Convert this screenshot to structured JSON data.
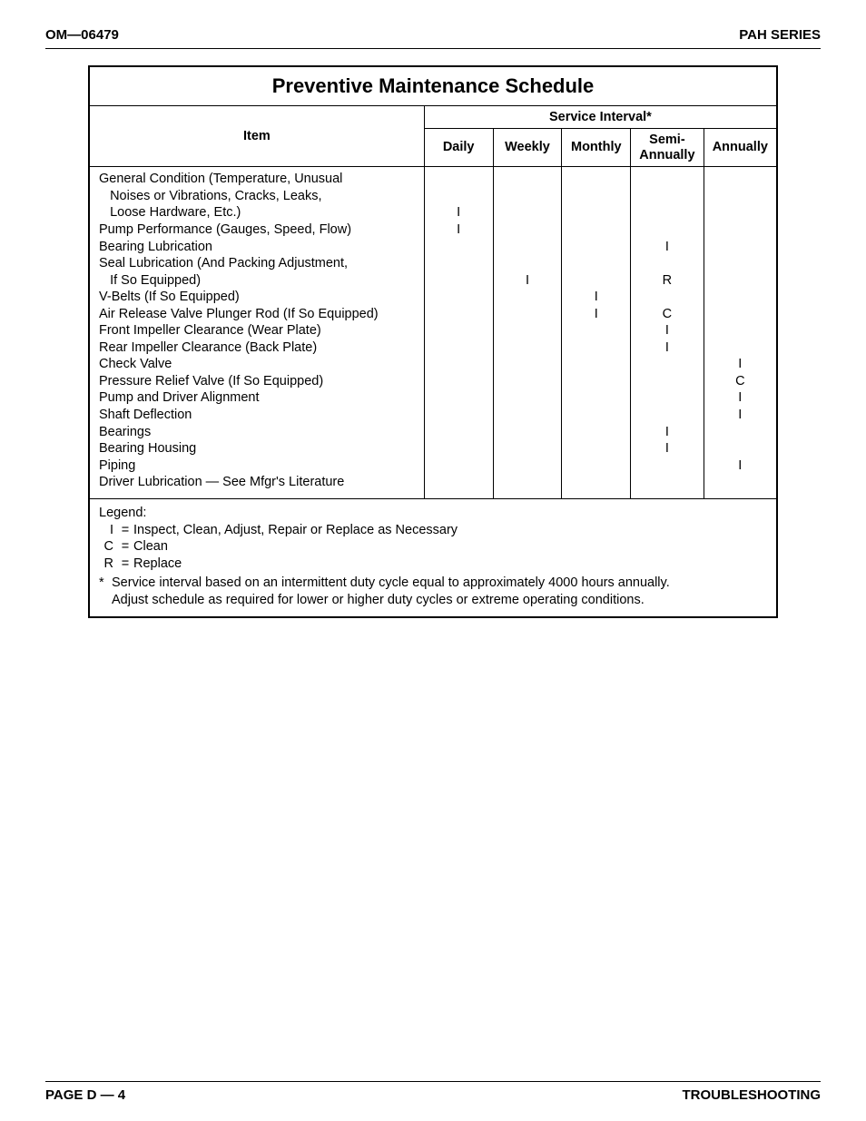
{
  "header": {
    "doc_id": "OM—06479",
    "series": "PAH SERIES"
  },
  "table": {
    "title": "Preventive Maintenance Schedule",
    "item_header": "Item",
    "service_interval_header": "Service Interval*",
    "interval_columns": [
      "Daily",
      "Weekly",
      "Monthly",
      "Semi-\nAnnually",
      "Annually"
    ],
    "rows": [
      {
        "lines": [
          "General Condition (Temperature, Unusual",
          "   Noises or Vibrations, Cracks, Leaks,",
          "   Loose Hardware, Etc.)"
        ],
        "marks": [
          "I",
          "",
          "",
          "",
          ""
        ]
      },
      {
        "lines": [
          "Pump Performance (Gauges, Speed, Flow)"
        ],
        "marks": [
          "I",
          "",
          "",
          "",
          ""
        ]
      },
      {
        "lines": [
          "Bearing Lubrication"
        ],
        "marks": [
          "",
          "",
          "",
          "I",
          ""
        ]
      },
      {
        "lines": [
          "Seal Lubrication (And Packing Adjustment,",
          "   If So Equipped)"
        ],
        "marks": [
          "",
          "I",
          "",
          "R",
          ""
        ]
      },
      {
        "lines": [
          "V-Belts (If So Equipped)"
        ],
        "marks": [
          "",
          "",
          "I",
          "",
          ""
        ]
      },
      {
        "lines": [
          "Air Release Valve Plunger Rod (If So Equipped)"
        ],
        "marks": [
          "",
          "",
          "I",
          "C",
          ""
        ]
      },
      {
        "lines": [
          "Front Impeller Clearance (Wear Plate)"
        ],
        "marks": [
          "",
          "",
          "",
          "I",
          ""
        ]
      },
      {
        "lines": [
          "Rear Impeller Clearance (Back Plate)"
        ],
        "marks": [
          "",
          "",
          "",
          "I",
          ""
        ]
      },
      {
        "lines": [
          "Check Valve"
        ],
        "marks": [
          "",
          "",
          "",
          "",
          "I"
        ]
      },
      {
        "lines": [
          "Pressure Relief Valve (If So Equipped)"
        ],
        "marks": [
          "",
          "",
          "",
          "",
          "C"
        ]
      },
      {
        "lines": [
          "Pump and Driver Alignment"
        ],
        "marks": [
          "",
          "",
          "",
          "",
          "I"
        ]
      },
      {
        "lines": [
          "Shaft Deflection"
        ],
        "marks": [
          "",
          "",
          "",
          "",
          "I"
        ]
      },
      {
        "lines": [
          "Bearings"
        ],
        "marks": [
          "",
          "",
          "",
          "I",
          ""
        ]
      },
      {
        "lines": [
          "Bearing Housing"
        ],
        "marks": [
          "",
          "",
          "",
          "I",
          ""
        ]
      },
      {
        "lines": [
          "Piping"
        ],
        "marks": [
          "",
          "",
          "",
          "",
          "I"
        ]
      },
      {
        "lines": [
          "Driver Lubrication — See Mfgr's Literature"
        ],
        "marks": [
          "",
          "",
          "",
          "",
          ""
        ]
      }
    ]
  },
  "legend": {
    "title": "Legend:",
    "entries": [
      {
        "symbol": "I",
        "text": "Inspect, Clean, Adjust, Repair or Replace as Necessary"
      },
      {
        "symbol": "C",
        "text": "Clean"
      },
      {
        "symbol": "R",
        "text": "Replace"
      }
    ],
    "note_symbol": "*",
    "note_lines": [
      "Service interval based on an intermittent duty cycle equal to approximately 4000 hours annually.",
      "Adjust schedule as required for lower or higher duty cycles or extreme operating conditions."
    ]
  },
  "footer": {
    "page": "PAGE D — 4",
    "section": "TROUBLESHOOTING"
  }
}
